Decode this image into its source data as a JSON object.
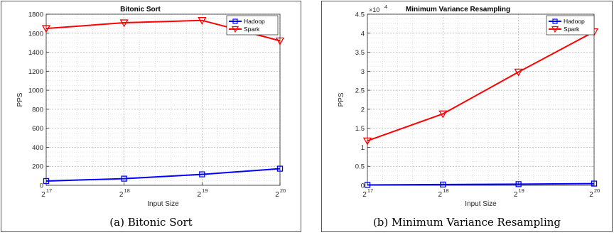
{
  "colors": {
    "hadoop": "#0000ff",
    "spark": "#ff0000",
    "grid": "#c8c8c8"
  },
  "chart_data": [
    {
      "type": "line",
      "title": "Bitonic Sort",
      "xlabel": "Input Size",
      "ylabel": "PPS",
      "caption": "(a) Bitonic Sort",
      "x_base": "2",
      "x_exponents": [
        "17",
        "18",
        "19",
        "20"
      ],
      "ylim": [
        0,
        1800
      ],
      "yticks": [
        0,
        200,
        400,
        600,
        800,
        1000,
        1200,
        1400,
        1600,
        1800
      ],
      "ytick_labels": [
        "0",
        "200",
        "400",
        "600",
        "800",
        "1000",
        "1200",
        "1400",
        "1600",
        "1800"
      ],
      "y_multiplier": "",
      "legend": "top-right",
      "grid": true,
      "series": [
        {
          "name": "Hadoop",
          "marker": "square",
          "values": [
            45,
            70,
            115,
            175
          ]
        },
        {
          "name": "Spark",
          "marker": "triangle-down",
          "values": [
            1650,
            1710,
            1735,
            1520
          ]
        }
      ]
    },
    {
      "type": "line",
      "title": "Minimum Variance Resampling",
      "xlabel": "Input Size",
      "ylabel": "PPS",
      "caption": "(b) Minimum Variance Resampling",
      "x_base": "2",
      "x_exponents": [
        "17",
        "18",
        "19",
        "20"
      ],
      "ylim": [
        0,
        45000
      ],
      "yticks": [
        0,
        5000,
        10000,
        15000,
        20000,
        25000,
        30000,
        35000,
        40000,
        45000
      ],
      "ytick_labels": [
        "0",
        "0.5",
        "1",
        "1.5",
        "2",
        "2.5",
        "3",
        "3.5",
        "4",
        "4.5"
      ],
      "y_multiplier": "×10",
      "y_multiplier_exp": "4",
      "legend": "top-right",
      "grid": true,
      "series": [
        {
          "name": "Hadoop",
          "marker": "square",
          "values": [
            100,
            200,
            300,
            450
          ]
        },
        {
          "name": "Spark",
          "marker": "triangle-down",
          "values": [
            11700,
            18800,
            29800,
            40400
          ]
        }
      ]
    }
  ]
}
